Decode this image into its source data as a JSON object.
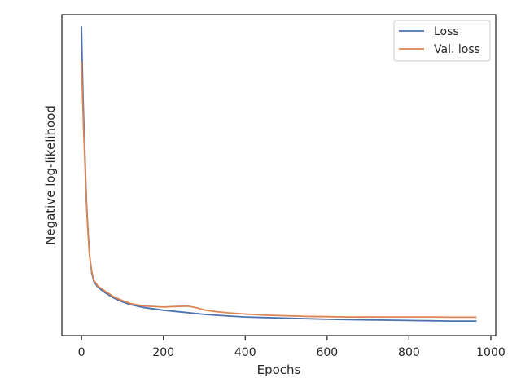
{
  "chart_data": {
    "type": "line",
    "title": "",
    "xlabel": "Epochs",
    "ylabel": "Negative log-likelihood",
    "xlim": [
      -48,
      1012
    ],
    "xticks": [
      0,
      200,
      400,
      600,
      800,
      1000
    ],
    "y_ticks_shown": false,
    "grid": false,
    "legend_position": "top-right",
    "series": [
      {
        "name": "Loss",
        "color": "#4c72b0",
        "x": [
          0,
          1,
          3,
          5,
          8,
          10,
          12,
          15,
          18,
          20,
          25,
          30,
          40,
          50,
          60,
          80,
          100,
          120,
          150,
          200,
          250,
          300,
          350,
          400,
          450,
          500,
          550,
          600,
          650,
          700,
          750,
          800,
          850,
          900,
          950,
          965
        ],
        "y": [
          1.0,
          0.93,
          0.8,
          0.69,
          0.57,
          0.48,
          0.4,
          0.32,
          0.25,
          0.21,
          0.155,
          0.125,
          0.106,
          0.095,
          0.085,
          0.068,
          0.056,
          0.046,
          0.037,
          0.027,
          0.02,
          0.013,
          0.008,
          0.004,
          0.002,
          0.0,
          -0.002,
          -0.004,
          -0.005,
          -0.006,
          -0.007,
          -0.008,
          -0.009,
          -0.01,
          -0.01,
          -0.01
        ]
      },
      {
        "name": "Val. loss",
        "color": "#dd8452",
        "x": [
          0,
          1,
          3,
          5,
          8,
          10,
          12,
          15,
          18,
          20,
          25,
          30,
          40,
          50,
          60,
          80,
          100,
          120,
          150,
          200,
          230,
          260,
          280,
          300,
          330,
          360,
          400,
          450,
          500,
          550,
          600,
          650,
          700,
          750,
          800,
          850,
          900,
          950,
          965
        ],
        "y": [
          0.88,
          0.82,
          0.74,
          0.64,
          0.54,
          0.46,
          0.39,
          0.31,
          0.245,
          0.21,
          0.16,
          0.13,
          0.11,
          0.1,
          0.09,
          0.072,
          0.06,
          0.05,
          0.042,
          0.038,
          0.04,
          0.041,
          0.036,
          0.028,
          0.022,
          0.018,
          0.014,
          0.01,
          0.008,
          0.006,
          0.005,
          0.004,
          0.004,
          0.004,
          0.004,
          0.004,
          0.003,
          0.003,
          0.003
        ]
      }
    ]
  }
}
